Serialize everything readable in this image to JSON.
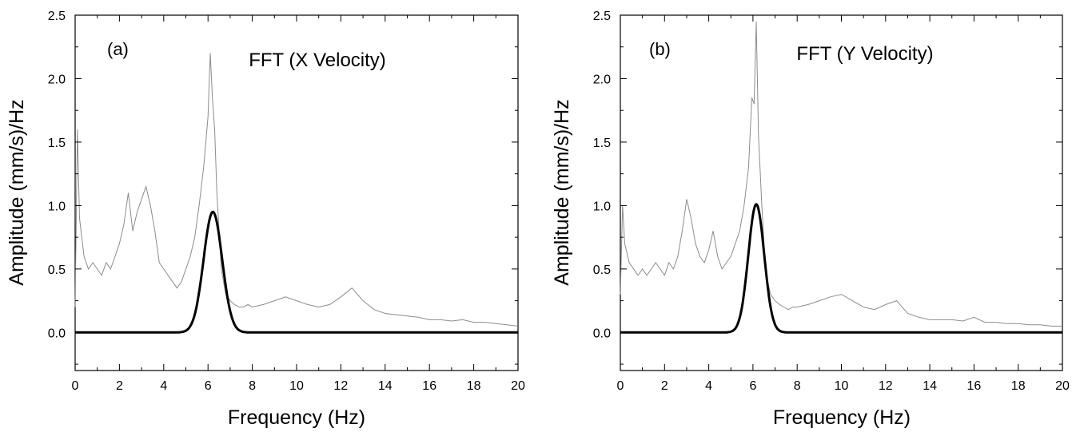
{
  "chart_data": [
    {
      "type": "line",
      "panel_label": "(a)",
      "title": "FFT (X Velocity)",
      "xlabel": "Frequency (Hz)",
      "ylabel": "Amplitude (mm/s)/Hz",
      "xlim": [
        0,
        20
      ],
      "ylim": [
        -0.3,
        2.5
      ],
      "xticks": [
        0,
        2,
        4,
        6,
        8,
        10,
        12,
        14,
        16,
        18,
        20
      ],
      "yticks": [
        0.0,
        0.5,
        1.0,
        1.5,
        2.0,
        2.5
      ],
      "xtick_labels": [
        "0",
        "2",
        "4",
        "6",
        "8",
        "10",
        "12",
        "14",
        "16",
        "18",
        "20"
      ],
      "ytick_labels": [
        "0.0",
        "0.5",
        "1.0",
        "1.5",
        "2.0",
        "2.5"
      ],
      "grid": false,
      "series": [
        {
          "role": "fft-spectrum",
          "color": "#8c8c8c",
          "x": [
            0.0,
            0.1,
            0.2,
            0.4,
            0.6,
            0.8,
            1.0,
            1.2,
            1.4,
            1.6,
            1.8,
            2.0,
            2.2,
            2.4,
            2.6,
            2.8,
            3.0,
            3.2,
            3.4,
            3.6,
            3.8,
            4.0,
            4.2,
            4.4,
            4.6,
            4.8,
            5.0,
            5.2,
            5.4,
            5.6,
            5.8,
            6.0,
            6.1,
            6.2,
            6.3,
            6.4,
            6.5,
            6.6,
            6.8,
            7.0,
            7.2,
            7.4,
            7.6,
            7.8,
            8.0,
            8.5,
            9.0,
            9.5,
            10.0,
            10.5,
            11.0,
            11.5,
            12.0,
            12.5,
            13.0,
            13.5,
            14.0,
            14.5,
            15.0,
            15.5,
            16.0,
            16.5,
            17.0,
            17.5,
            18.0,
            18.5,
            19.0,
            19.5,
            20.0
          ],
          "y": [
            0.2,
            1.6,
            0.9,
            0.6,
            0.5,
            0.55,
            0.5,
            0.45,
            0.55,
            0.5,
            0.6,
            0.7,
            0.85,
            1.1,
            0.8,
            0.95,
            1.05,
            1.15,
            1.0,
            0.8,
            0.55,
            0.5,
            0.45,
            0.4,
            0.35,
            0.4,
            0.5,
            0.6,
            0.75,
            1.0,
            1.3,
            1.7,
            2.2,
            1.85,
            1.6,
            1.1,
            0.8,
            0.5,
            0.3,
            0.25,
            0.22,
            0.2,
            0.2,
            0.22,
            0.2,
            0.22,
            0.25,
            0.28,
            0.25,
            0.22,
            0.2,
            0.22,
            0.28,
            0.35,
            0.25,
            0.18,
            0.15,
            0.14,
            0.13,
            0.12,
            0.1,
            0.1,
            0.09,
            0.1,
            0.08,
            0.08,
            0.07,
            0.06,
            0.05
          ]
        },
        {
          "role": "gaussian-fit",
          "color": "#000000",
          "type": "gaussian",
          "center": 6.22,
          "peak": 0.95,
          "sigma": 0.42
        }
      ]
    },
    {
      "type": "line",
      "panel_label": "(b)",
      "title": "FFT (Y Velocity)",
      "xlabel": "Frequency (Hz)",
      "ylabel": "Amplitude (mm/s)/Hz",
      "xlim": [
        0,
        20
      ],
      "ylim": [
        -0.3,
        2.5
      ],
      "xticks": [
        0,
        2,
        4,
        6,
        8,
        10,
        12,
        14,
        16,
        18,
        20
      ],
      "yticks": [
        0.0,
        0.5,
        1.0,
        1.5,
        2.0,
        2.5
      ],
      "xtick_labels": [
        "0",
        "2",
        "4",
        "6",
        "8",
        "10",
        "12",
        "14",
        "16",
        "18",
        "20"
      ],
      "ytick_labels": [
        "0.0",
        "0.5",
        "1.0",
        "1.5",
        "2.0",
        "2.5"
      ],
      "grid": false,
      "series": [
        {
          "role": "fft-spectrum",
          "color": "#8c8c8c",
          "x": [
            0.0,
            0.1,
            0.2,
            0.4,
            0.6,
            0.8,
            1.0,
            1.2,
            1.4,
            1.6,
            1.8,
            2.0,
            2.2,
            2.4,
            2.6,
            2.8,
            3.0,
            3.2,
            3.4,
            3.6,
            3.8,
            4.0,
            4.2,
            4.4,
            4.6,
            4.8,
            5.0,
            5.2,
            5.4,
            5.6,
            5.8,
            5.95,
            6.05,
            6.15,
            6.25,
            6.4,
            6.5,
            6.6,
            6.8,
            7.0,
            7.2,
            7.4,
            7.6,
            7.8,
            8.0,
            8.5,
            9.0,
            9.5,
            10.0,
            10.5,
            11.0,
            11.5,
            12.0,
            12.5,
            13.0,
            13.5,
            14.0,
            14.5,
            15.0,
            15.5,
            16.0,
            16.5,
            17.0,
            17.5,
            18.0,
            18.5,
            19.0,
            19.5,
            20.0
          ],
          "y": [
            0.3,
            1.0,
            0.7,
            0.55,
            0.5,
            0.45,
            0.5,
            0.45,
            0.5,
            0.55,
            0.5,
            0.45,
            0.55,
            0.5,
            0.6,
            0.8,
            1.05,
            0.9,
            0.7,
            0.6,
            0.55,
            0.65,
            0.8,
            0.6,
            0.5,
            0.55,
            0.6,
            0.7,
            0.8,
            1.0,
            1.3,
            1.85,
            1.8,
            2.45,
            1.55,
            1.0,
            0.7,
            0.45,
            0.3,
            0.25,
            0.22,
            0.2,
            0.18,
            0.2,
            0.2,
            0.22,
            0.25,
            0.28,
            0.3,
            0.25,
            0.2,
            0.18,
            0.22,
            0.25,
            0.15,
            0.12,
            0.1,
            0.1,
            0.1,
            0.09,
            0.12,
            0.08,
            0.08,
            0.07,
            0.07,
            0.06,
            0.06,
            0.05,
            0.05
          ]
        },
        {
          "role": "gaussian-fit",
          "color": "#000000",
          "type": "gaussian",
          "center": 6.15,
          "peak": 1.01,
          "sigma": 0.36
        }
      ]
    }
  ]
}
